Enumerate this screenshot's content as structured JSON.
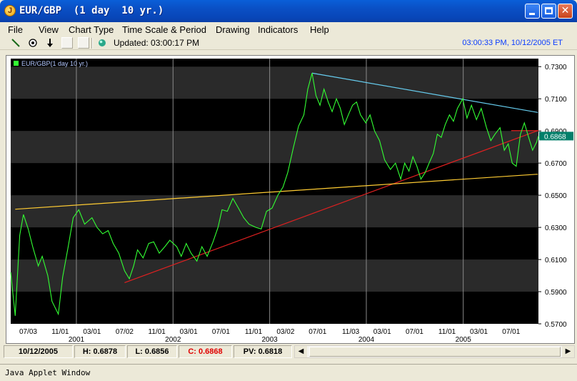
{
  "window": {
    "title": "EUR/GBP  (1 day  10 yr.)",
    "app_icon": "java-coffee-icon",
    "controls": [
      "minimize-icon",
      "maximize-icon",
      "close-icon"
    ]
  },
  "menu": [
    "File",
    "View",
    "Chart Type",
    "Time Scale & Period",
    "Drawing",
    "Indicators",
    "Help"
  ],
  "toolbar": {
    "tools": [
      "draw-line-icon",
      "target-icon",
      "down-arrow-icon"
    ],
    "updated": "Updated: 03:00:17 PM",
    "clock": "03:00:33 PM, 10/12/2005 ET"
  },
  "colors": {
    "price_line": "#33ff33",
    "band_dark": "#000000",
    "band_light": "#2a2a2a",
    "trend_blue": "#66ccee",
    "trend_red": "#e02020",
    "trend_yellow": "#ffcc33",
    "last_price_tag": "#007f6a",
    "clock_text": "#0a3cff"
  },
  "chart_data": {
    "type": "line",
    "legend": "EUR/GBP(1 day 10 yr.)",
    "ylim": [
      0.57,
      0.735
    ],
    "y_ticks": [
      "0.7300",
      "0.7100",
      "0.6900",
      "0.6700",
      "0.6500",
      "0.6300",
      "0.6100",
      "0.5900",
      "0.5700"
    ],
    "y_tick_values": [
      0.73,
      0.71,
      0.69,
      0.67,
      0.65,
      0.63,
      0.61,
      0.59,
      0.57
    ],
    "last_price": "0.6868",
    "x_ticks": [
      "07/03",
      "11/01",
      "03/01",
      "07/02",
      "11/01",
      "03/01",
      "07/01",
      "11/01",
      "03/02",
      "07/01",
      "11/03",
      "03/01",
      "07/01",
      "11/01",
      "03/01",
      "07/01"
    ],
    "x_tick_dates": [
      "2000-07-03",
      "2000-11-01",
      "2001-03-01",
      "2001-07-02",
      "2001-11-01",
      "2002-03-01",
      "2002-07-01",
      "2002-11-01",
      "2003-03-02",
      "2003-07-01",
      "2003-11-03",
      "2004-03-01",
      "2004-07-01",
      "2004-11-01",
      "2005-03-01",
      "2005-07-01"
    ],
    "year_labels": [
      "2001",
      "2002",
      "2003",
      "2004",
      "2005"
    ],
    "year_dates": [
      "2001-01-01",
      "2002-01-01",
      "2003-01-01",
      "2004-01-01",
      "2005-01-01"
    ],
    "xlim": [
      "2000-04-28",
      "2005-10-12"
    ],
    "series": [
      {
        "x": [
          "2000-04-28",
          "2000-05-15",
          "2000-06-01",
          "2000-06-15",
          "2000-07-03",
          "2000-07-20",
          "2000-08-10",
          "2000-08-25",
          "2000-09-15",
          "2000-10-01",
          "2000-10-25",
          "2000-11-10",
          "2000-12-01",
          "2000-12-20",
          "2001-01-10",
          "2001-02-01",
          "2001-03-01",
          "2001-03-20",
          "2001-04-10",
          "2001-05-01",
          "2001-05-20",
          "2001-06-10",
          "2001-07-02",
          "2001-07-20",
          "2001-08-05",
          "2001-08-20",
          "2001-09-10",
          "2001-10-01",
          "2001-10-20",
          "2001-11-10",
          "2001-12-01",
          "2001-12-20",
          "2002-01-15",
          "2002-02-01",
          "2002-02-20",
          "2002-03-10",
          "2002-04-01",
          "2002-04-20",
          "2002-05-10",
          "2002-06-01",
          "2002-06-20",
          "2002-07-05",
          "2002-07-25",
          "2002-08-15",
          "2002-09-05",
          "2002-09-25",
          "2002-10-15",
          "2002-11-10",
          "2002-11-30",
          "2002-12-20",
          "2003-01-10",
          "2003-02-01",
          "2003-02-20",
          "2003-03-10",
          "2003-04-01",
          "2003-04-20",
          "2003-05-10",
          "2003-05-25",
          "2003-06-10",
          "2003-06-25",
          "2003-07-10",
          "2003-07-25",
          "2003-08-10",
          "2003-08-25",
          "2003-09-10",
          "2003-09-25",
          "2003-10-10",
          "2003-10-25",
          "2003-11-10",
          "2003-11-25",
          "2003-12-10",
          "2003-12-30",
          "2004-01-15",
          "2004-02-01",
          "2004-02-20",
          "2004-03-10",
          "2004-04-01",
          "2004-04-20",
          "2004-05-10",
          "2004-05-25",
          "2004-06-10",
          "2004-06-25",
          "2004-07-10",
          "2004-07-25",
          "2004-08-10",
          "2004-08-25",
          "2004-09-10",
          "2004-09-25",
          "2004-10-10",
          "2004-10-25",
          "2004-11-10",
          "2004-11-25",
          "2004-12-10",
          "2004-12-30",
          "2005-01-15",
          "2005-02-01",
          "2005-02-20",
          "2005-03-10",
          "2005-03-30",
          "2005-04-15",
          "2005-05-01",
          "2005-05-20",
          "2005-06-05",
          "2005-06-20",
          "2005-07-05",
          "2005-07-20",
          "2005-08-05",
          "2005-08-20",
          "2005-09-05",
          "2005-09-20",
          "2005-10-05",
          "2005-10-12"
        ],
        "values": [
          0.602,
          0.575,
          0.625,
          0.638,
          0.629,
          0.618,
          0.606,
          0.612,
          0.6,
          0.584,
          0.576,
          0.599,
          0.618,
          0.636,
          0.641,
          0.632,
          0.636,
          0.63,
          0.626,
          0.628,
          0.62,
          0.614,
          0.603,
          0.598,
          0.606,
          0.616,
          0.611,
          0.62,
          0.621,
          0.614,
          0.618,
          0.622,
          0.618,
          0.612,
          0.62,
          0.614,
          0.609,
          0.618,
          0.612,
          0.621,
          0.63,
          0.641,
          0.64,
          0.648,
          0.642,
          0.636,
          0.632,
          0.63,
          0.629,
          0.64,
          0.642,
          0.65,
          0.655,
          0.664,
          0.68,
          0.693,
          0.7,
          0.716,
          0.726,
          0.712,
          0.706,
          0.716,
          0.708,
          0.702,
          0.71,
          0.704,
          0.694,
          0.7,
          0.706,
          0.708,
          0.7,
          0.695,
          0.7,
          0.69,
          0.684,
          0.672,
          0.666,
          0.67,
          0.66,
          0.67,
          0.665,
          0.674,
          0.668,
          0.66,
          0.664,
          0.67,
          0.676,
          0.688,
          0.686,
          0.694,
          0.7,
          0.696,
          0.704,
          0.71,
          0.698,
          0.706,
          0.697,
          0.704,
          0.692,
          0.684,
          0.688,
          0.692,
          0.678,
          0.682,
          0.67,
          0.668,
          0.688,
          0.695,
          0.686,
          0.678,
          0.683,
          0.6868
        ]
      }
    ],
    "trendlines": [
      {
        "name": "blue",
        "x": [
          "2003-06-10",
          "2005-10-10"
        ],
        "values": [
          0.726,
          0.7015
        ]
      },
      {
        "name": "red",
        "x": [
          "2001-07-02",
          "2005-10-10"
        ],
        "values": [
          0.5956,
          0.6902
        ]
      },
      {
        "name": "yellow",
        "x": [
          "2000-05-15",
          "2005-10-10"
        ],
        "values": [
          0.6413,
          0.6631
        ]
      }
    ],
    "resistance_segment": {
      "x": [
        "2005-07-01",
        "2005-10-12"
      ],
      "value": 0.6902
    }
  },
  "status": {
    "date": "10/12/2005",
    "high": "H: 0.6878",
    "low": "L: 0.6856",
    "close": "C: 0.6868",
    "pv": "PV: 0.6818"
  },
  "applet_label": "Java Applet Window"
}
